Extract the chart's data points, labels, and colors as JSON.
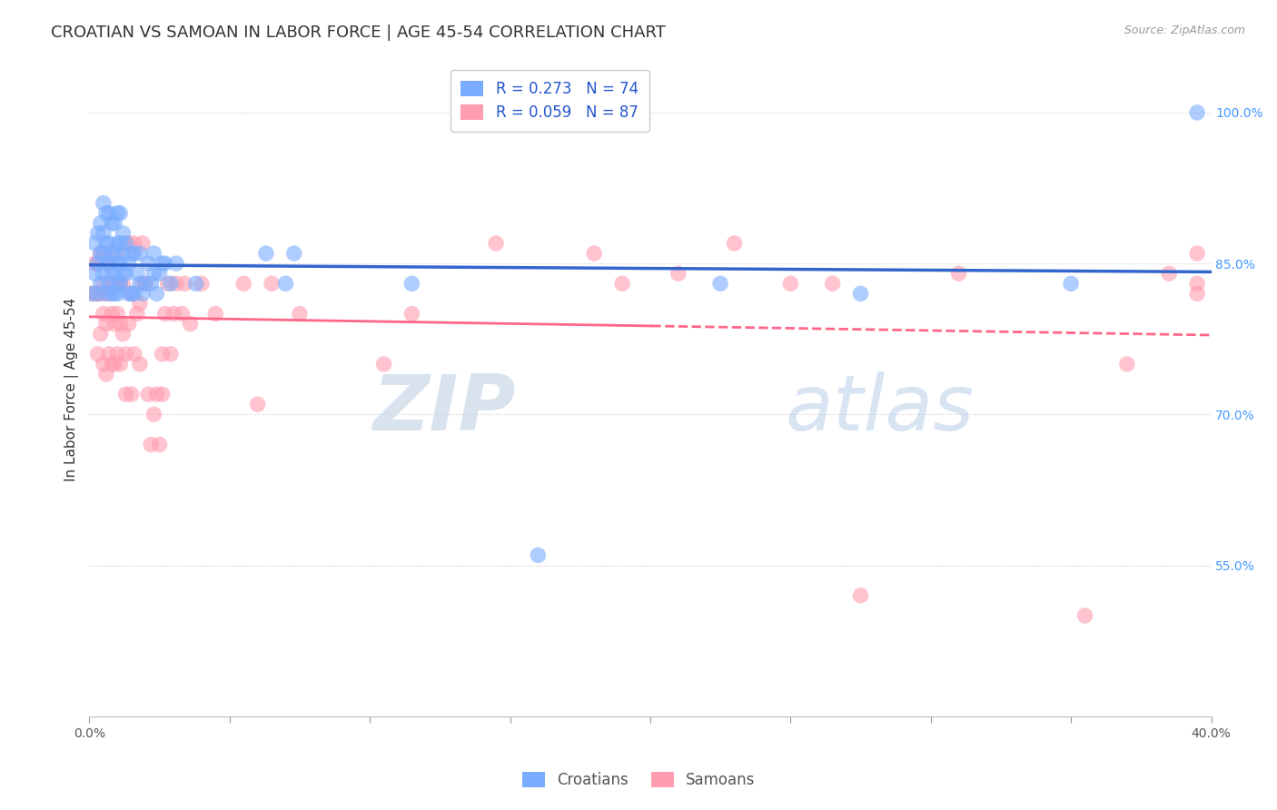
{
  "title": "CROATIAN VS SAMOAN IN LABOR FORCE | AGE 45-54 CORRELATION CHART",
  "source": "Source: ZipAtlas.com",
  "ylabel": "In Labor Force | Age 45-54",
  "xlim": [
    0.0,
    0.4
  ],
  "ylim": [
    0.4,
    1.05
  ],
  "yticks_right": [
    0.55,
    0.7,
    0.85,
    1.0
  ],
  "ytick_labels_right": [
    "55.0%",
    "70.0%",
    "85.0%",
    "100.0%"
  ],
  "grid_color": "#cccccc",
  "background_color": "#ffffff",
  "blue_color": "#7aadff",
  "pink_color": "#ff9db0",
  "blue_line_color": "#3366cc",
  "pink_line_color": "#ff6688",
  "R_croatian": 0.273,
  "N_croatian": 74,
  "R_samoan": 0.059,
  "N_samoan": 87,
  "watermark_zip": "ZIP",
  "watermark_atlas": "atlas",
  "title_fontsize": 13,
  "label_fontsize": 11,
  "tick_fontsize": 10,
  "legend_fontsize": 12,
  "croatian_x": [
    0.001,
    0.002,
    0.002,
    0.003,
    0.003,
    0.003,
    0.004,
    0.004,
    0.004,
    0.005,
    0.005,
    0.005,
    0.005,
    0.006,
    0.006,
    0.006,
    0.006,
    0.007,
    0.007,
    0.007,
    0.007,
    0.008,
    0.008,
    0.008,
    0.008,
    0.009,
    0.009,
    0.009,
    0.009,
    0.01,
    0.01,
    0.01,
    0.01,
    0.01,
    0.011,
    0.011,
    0.011,
    0.011,
    0.012,
    0.012,
    0.012,
    0.013,
    0.013,
    0.014,
    0.014,
    0.015,
    0.015,
    0.016,
    0.016,
    0.017,
    0.018,
    0.018,
    0.019,
    0.02,
    0.021,
    0.022,
    0.023,
    0.023,
    0.024,
    0.025,
    0.026,
    0.027,
    0.029,
    0.031,
    0.038,
    0.063,
    0.07,
    0.073,
    0.115,
    0.16,
    0.225,
    0.275,
    0.35,
    0.395
  ],
  "croatian_y": [
    0.82,
    0.84,
    0.87,
    0.82,
    0.85,
    0.88,
    0.83,
    0.86,
    0.89,
    0.84,
    0.86,
    0.88,
    0.91,
    0.82,
    0.85,
    0.87,
    0.9,
    0.83,
    0.85,
    0.87,
    0.9,
    0.82,
    0.84,
    0.86,
    0.89,
    0.82,
    0.84,
    0.86,
    0.89,
    0.82,
    0.83,
    0.85,
    0.87,
    0.9,
    0.83,
    0.85,
    0.87,
    0.9,
    0.84,
    0.86,
    0.88,
    0.84,
    0.87,
    0.82,
    0.85,
    0.82,
    0.86,
    0.82,
    0.86,
    0.84,
    0.83,
    0.86,
    0.82,
    0.83,
    0.85,
    0.83,
    0.84,
    0.86,
    0.82,
    0.84,
    0.85,
    0.85,
    0.83,
    0.85,
    0.83,
    0.86,
    0.83,
    0.86,
    0.83,
    0.56,
    0.83,
    0.82,
    0.83,
    1.0
  ],
  "samoan_x": [
    0.001,
    0.002,
    0.002,
    0.003,
    0.003,
    0.003,
    0.004,
    0.004,
    0.004,
    0.005,
    0.005,
    0.005,
    0.005,
    0.006,
    0.006,
    0.006,
    0.006,
    0.007,
    0.007,
    0.007,
    0.008,
    0.008,
    0.008,
    0.009,
    0.009,
    0.009,
    0.01,
    0.01,
    0.01,
    0.01,
    0.011,
    0.011,
    0.011,
    0.012,
    0.012,
    0.013,
    0.013,
    0.014,
    0.014,
    0.015,
    0.015,
    0.016,
    0.016,
    0.017,
    0.018,
    0.018,
    0.019,
    0.019,
    0.02,
    0.021,
    0.022,
    0.023,
    0.024,
    0.025,
    0.026,
    0.026,
    0.027,
    0.028,
    0.029,
    0.03,
    0.031,
    0.033,
    0.034,
    0.036,
    0.04,
    0.045,
    0.055,
    0.06,
    0.065,
    0.075,
    0.105,
    0.115,
    0.145,
    0.18,
    0.19,
    0.21,
    0.23,
    0.25,
    0.265,
    0.275,
    0.31,
    0.355,
    0.37,
    0.385,
    0.395,
    0.395,
    0.395
  ],
  "samoan_y": [
    0.82,
    0.82,
    0.85,
    0.76,
    0.82,
    0.85,
    0.78,
    0.82,
    0.86,
    0.75,
    0.8,
    0.83,
    0.86,
    0.74,
    0.79,
    0.82,
    0.86,
    0.76,
    0.82,
    0.85,
    0.75,
    0.8,
    0.83,
    0.75,
    0.79,
    0.83,
    0.76,
    0.8,
    0.83,
    0.86,
    0.75,
    0.79,
    0.83,
    0.78,
    0.83,
    0.72,
    0.76,
    0.79,
    0.87,
    0.72,
    0.82,
    0.76,
    0.87,
    0.8,
    0.75,
    0.81,
    0.83,
    0.87,
    0.83,
    0.72,
    0.67,
    0.7,
    0.72,
    0.67,
    0.72,
    0.76,
    0.8,
    0.83,
    0.76,
    0.8,
    0.83,
    0.8,
    0.83,
    0.79,
    0.83,
    0.8,
    0.83,
    0.71,
    0.83,
    0.8,
    0.75,
    0.8,
    0.87,
    0.86,
    0.83,
    0.84,
    0.87,
    0.83,
    0.83,
    0.52,
    0.84,
    0.5,
    0.75,
    0.84,
    0.83,
    0.86,
    0.82
  ]
}
